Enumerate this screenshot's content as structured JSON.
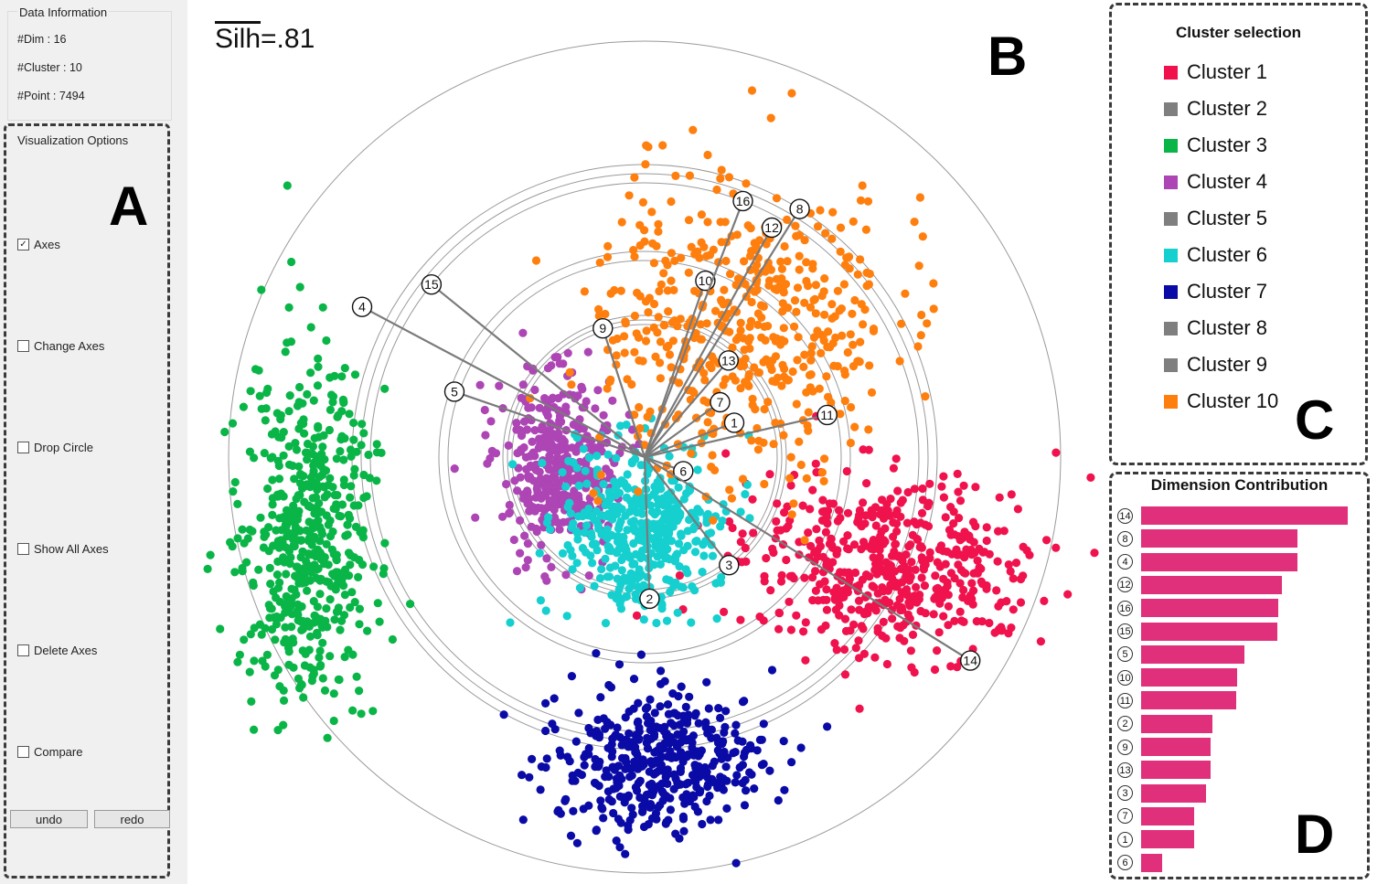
{
  "data_info": {
    "title": "Data Information",
    "dim": "#Dim : 16",
    "cluster": "#Cluster : 10",
    "point": "#Point : 7494"
  },
  "panel_letters": {
    "a": "A",
    "b": "B",
    "c": "C",
    "d": "D"
  },
  "options": {
    "title": "Visualization Options",
    "items": [
      {
        "label": "Axes",
        "checked": true
      },
      {
        "label": "Change Axes",
        "checked": false
      },
      {
        "label": "Drop Circle",
        "checked": false
      },
      {
        "label": "Show All Axes",
        "checked": false
      },
      {
        "label": "Delete Axes",
        "checked": false
      },
      {
        "label": "Compare",
        "checked": false
      }
    ],
    "undo_label": "undo",
    "redo_label": "redo"
  },
  "silhouette": {
    "symbol": "Silh",
    "value": "=.81"
  },
  "legend": {
    "title": "Cluster selection",
    "items": [
      {
        "label": "Cluster 1",
        "color": "#f0124d"
      },
      {
        "label": "Cluster 2",
        "color": "#7f7f7f"
      },
      {
        "label": "Cluster 3",
        "color": "#0ab548"
      },
      {
        "label": "Cluster 4",
        "color": "#ad45b5"
      },
      {
        "label": "Cluster 5",
        "color": "#7f7f7f"
      },
      {
        "label": "Cluster 6",
        "color": "#16cfcf"
      },
      {
        "label": "Cluster 7",
        "color": "#0a0aa6"
      },
      {
        "label": "Cluster 8",
        "color": "#7f7f7f"
      },
      {
        "label": "Cluster 9",
        "color": "#7f7f7f"
      },
      {
        "label": "Cluster 10",
        "color": "#ff7f0e"
      }
    ]
  },
  "contribution": {
    "title": "Dimension Contribution",
    "bar_color": "#e0307c",
    "items": [
      {
        "dim": "14",
        "value": 1.0
      },
      {
        "dim": "8",
        "value": 0.755
      },
      {
        "dim": "4",
        "value": 0.755
      },
      {
        "dim": "12",
        "value": 0.68
      },
      {
        "dim": "16",
        "value": 0.665
      },
      {
        "dim": "15",
        "value": 0.66
      },
      {
        "dim": "5",
        "value": 0.5
      },
      {
        "dim": "10",
        "value": 0.465
      },
      {
        "dim": "11",
        "value": 0.46
      },
      {
        "dim": "2",
        "value": 0.345
      },
      {
        "dim": "9",
        "value": 0.335
      },
      {
        "dim": "13",
        "value": 0.335
      },
      {
        "dim": "3",
        "value": 0.315
      },
      {
        "dim": "7",
        "value": 0.255
      },
      {
        "dim": "1",
        "value": 0.255
      },
      {
        "dim": "6",
        "value": 0.1
      }
    ]
  },
  "axes": [
    {
      "label": "1",
      "angle": -21,
      "radius": 105
    },
    {
      "label": "2",
      "angle": 88,
      "radius": 155
    },
    {
      "label": "3",
      "angle": 52,
      "radius": 150
    },
    {
      "label": "4",
      "angle": -152,
      "radius": 350
    },
    {
      "label": "5",
      "angle": -161,
      "radius": 220
    },
    {
      "label": "6",
      "angle": 20,
      "radius": 45
    },
    {
      "label": "7",
      "angle": -36,
      "radius": 102
    },
    {
      "label": "8",
      "angle": -58,
      "radius": 320
    },
    {
      "label": "9",
      "angle": -108,
      "radius": 148
    },
    {
      "label": "10",
      "angle": -71,
      "radius": 204
    },
    {
      "label": "11",
      "angle": -13,
      "radius": 205
    },
    {
      "label": "12",
      "angle": -61,
      "radius": 287
    },
    {
      "label": "13",
      "angle": -49,
      "radius": 140
    },
    {
      "label": "14",
      "angle": 32,
      "radius": 420
    },
    {
      "label": "15",
      "angle": -141,
      "radius": 300
    },
    {
      "label": "16",
      "angle": -69,
      "radius": 300
    }
  ],
  "rings": [
    145,
    150,
    155,
    215,
    225,
    300,
    310,
    320,
    455
  ],
  "clusters": [
    {
      "name": "Cluster 1",
      "color": "#f0124d",
      "cx": 270,
      "cy": 118,
      "sx": 80,
      "sy": 48,
      "n": 520
    },
    {
      "name": "Cluster 3",
      "color": "#0ab548",
      "cx": -370,
      "cy": 85,
      "sx": 36,
      "sy": 95,
      "n": 540
    },
    {
      "name": "Cluster 4",
      "color": "#ad45b5",
      "cx": -95,
      "cy": 5,
      "sx": 30,
      "sy": 48,
      "n": 380
    },
    {
      "name": "Cluster 6",
      "color": "#16cfcf",
      "cx": -5,
      "cy": 80,
      "sx": 42,
      "sy": 48,
      "n": 420
    },
    {
      "name": "Cluster 7",
      "color": "#0a0aa6",
      "cx": 8,
      "cy": 335,
      "sx": 58,
      "sy": 40,
      "n": 430
    },
    {
      "name": "Cluster 10",
      "color": "#ff7f0e",
      "cx": 110,
      "cy": -140,
      "sx": 80,
      "sy": 85,
      "n": 520
    }
  ]
}
